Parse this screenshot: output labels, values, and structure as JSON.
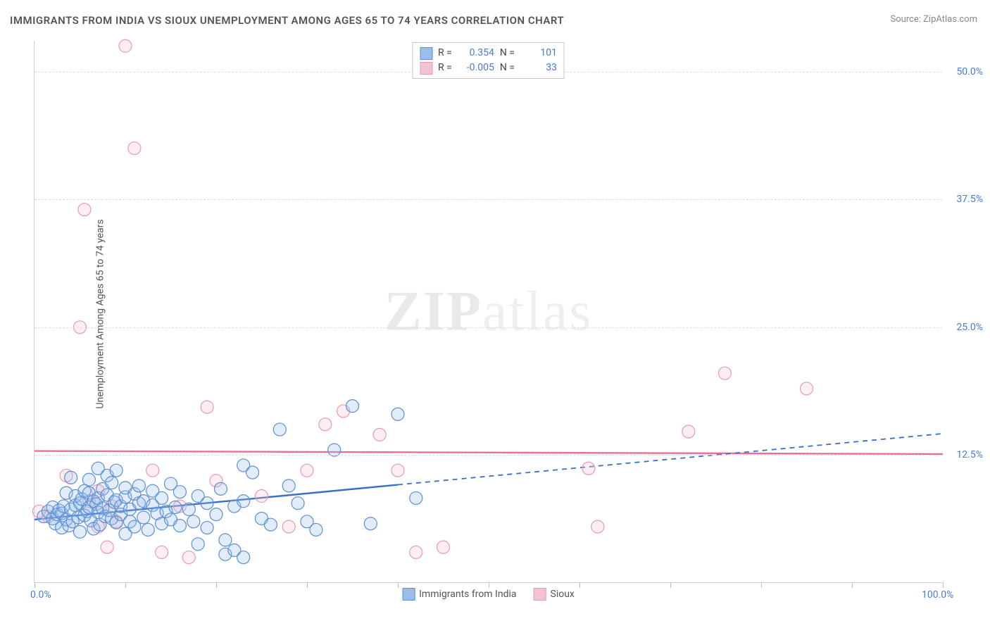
{
  "title": "IMMIGRANTS FROM INDIA VS SIOUX UNEMPLOYMENT AMONG AGES 65 TO 74 YEARS CORRELATION CHART",
  "source_label": "Source:",
  "source_name": "ZipAtlas.com",
  "y_axis_label": "Unemployment Among Ages 65 to 74 years",
  "watermark": {
    "bold": "ZIP",
    "light": "atlas"
  },
  "chart": {
    "type": "scatter",
    "xlim": [
      0,
      100
    ],
    "ylim": [
      0,
      53
    ],
    "x_ticks": [
      0,
      10,
      20,
      30,
      40,
      50,
      60,
      70,
      80,
      90,
      100
    ],
    "x_tick_labels": {
      "0": "0.0%",
      "100": "100.0%"
    },
    "y_gridlines": [
      12.5,
      25.0,
      37.5,
      50.0
    ],
    "y_tick_labels": [
      "12.5%",
      "25.0%",
      "37.5%",
      "50.0%"
    ],
    "background_color": "#ffffff",
    "grid_color": "#dcdcdc",
    "axis_color": "#d0d0d0",
    "label_color": "#4a7bd0",
    "marker_radius": 9,
    "marker_stroke_width": 1.2,
    "marker_fill_opacity": 0.28,
    "series": [
      {
        "name": "Immigrants from India",
        "color_stroke": "#5b8fd6",
        "color_fill": "#9cbde8",
        "R": "0.354",
        "N": "101",
        "trend": {
          "x1": 0,
          "y1": 6.2,
          "x2": 40,
          "y2": 9.6,
          "x_solid_end": 40,
          "x_dash_end": 100,
          "y_dash_end": 14.6,
          "stroke": "#3a6fc7",
          "width": 2.4
        },
        "points": [
          [
            1,
            6.5
          ],
          [
            1.5,
            7
          ],
          [
            2,
            6.3
          ],
          [
            2,
            7.4
          ],
          [
            2.3,
            5.8
          ],
          [
            2.5,
            6.7
          ],
          [
            2.7,
            7.1
          ],
          [
            3,
            6.8
          ],
          [
            3,
            5.4
          ],
          [
            3.2,
            7.5
          ],
          [
            3.5,
            6.2
          ],
          [
            3.5,
            8.8
          ],
          [
            3.8,
            5.6
          ],
          [
            4,
            7.2
          ],
          [
            4,
            10.3
          ],
          [
            4.2,
            6.0
          ],
          [
            4.5,
            7.6
          ],
          [
            4.5,
            8.5
          ],
          [
            4.8,
            6.4
          ],
          [
            5,
            7.8
          ],
          [
            5,
            5.0
          ],
          [
            5.2,
            8.2
          ],
          [
            5.5,
            6.6
          ],
          [
            5.5,
            9.0
          ],
          [
            5.8,
            7.0
          ],
          [
            6,
            7.4
          ],
          [
            6,
            8.8
          ],
          [
            6,
            10.1
          ],
          [
            6.2,
            6.1
          ],
          [
            6.5,
            8.0
          ],
          [
            6.5,
            5.3
          ],
          [
            6.8,
            7.7
          ],
          [
            7,
            6.9
          ],
          [
            7,
            8.3
          ],
          [
            7,
            11.2
          ],
          [
            7.2,
            5.7
          ],
          [
            7.5,
            7.3
          ],
          [
            7.5,
            9.2
          ],
          [
            7.8,
            6.5
          ],
          [
            8,
            8.6
          ],
          [
            8,
            10.5
          ],
          [
            8.2,
            7.1
          ],
          [
            8.5,
            6.3
          ],
          [
            8.5,
            9.8
          ],
          [
            8.8,
            7.9
          ],
          [
            9,
            5.9
          ],
          [
            9,
            8.1
          ],
          [
            9,
            11.0
          ],
          [
            9.5,
            6.7
          ],
          [
            9.5,
            7.5
          ],
          [
            10,
            8.4
          ],
          [
            10,
            4.8
          ],
          [
            10,
            9.3
          ],
          [
            10.5,
            7.2
          ],
          [
            10.5,
            6.0
          ],
          [
            11,
            8.7
          ],
          [
            11,
            5.5
          ],
          [
            11.5,
            7.8
          ],
          [
            11.5,
            9.5
          ],
          [
            12,
            6.4
          ],
          [
            12,
            8.0
          ],
          [
            12.5,
            5.2
          ],
          [
            13,
            7.6
          ],
          [
            13,
            9.0
          ],
          [
            13.5,
            6.8
          ],
          [
            14,
            8.3
          ],
          [
            14,
            5.8
          ],
          [
            14.5,
            7.0
          ],
          [
            15,
            9.7
          ],
          [
            15,
            6.2
          ],
          [
            15.5,
            7.4
          ],
          [
            16,
            8.9
          ],
          [
            16,
            5.6
          ],
          [
            17,
            7.2
          ],
          [
            17.5,
            6.0
          ],
          [
            18,
            8.5
          ],
          [
            18,
            3.8
          ],
          [
            19,
            7.8
          ],
          [
            19,
            5.4
          ],
          [
            20,
            6.7
          ],
          [
            20.5,
            9.2
          ],
          [
            21,
            4.2
          ],
          [
            21,
            2.8
          ],
          [
            22,
            7.5
          ],
          [
            22,
            3.2
          ],
          [
            23,
            11.5
          ],
          [
            23,
            8.0
          ],
          [
            23,
            2.5
          ],
          [
            24,
            10.8
          ],
          [
            25,
            6.3
          ],
          [
            26,
            5.7
          ],
          [
            27,
            15.0
          ],
          [
            28,
            9.5
          ],
          [
            29,
            7.8
          ],
          [
            30,
            6.0
          ],
          [
            31,
            5.2
          ],
          [
            33,
            13.0
          ],
          [
            35,
            17.3
          ],
          [
            37,
            5.8
          ],
          [
            40,
            16.5
          ],
          [
            42,
            8.3
          ]
        ]
      },
      {
        "name": "Sioux",
        "color_stroke": "#e89ab0",
        "color_fill": "#f4c3d0",
        "R": "-0.005",
        "N": "33",
        "trend": {
          "x1": 0,
          "y1": 12.9,
          "x2": 100,
          "y2": 12.6,
          "stroke": "#e86f9a",
          "width": 2.4
        },
        "points": [
          [
            1.5,
            6.5
          ],
          [
            3.5,
            10.5
          ],
          [
            5,
            25.0
          ],
          [
            5.5,
            36.5
          ],
          [
            6,
            8.0
          ],
          [
            7,
            5.5
          ],
          [
            7,
            9.0
          ],
          [
            8,
            3.5
          ],
          [
            8.5,
            7.5
          ],
          [
            9,
            6.0
          ],
          [
            10,
            52.5
          ],
          [
            11,
            42.5
          ],
          [
            13,
            11.0
          ],
          [
            14,
            3.0
          ],
          [
            16,
            7.5
          ],
          [
            17,
            2.5
          ],
          [
            19,
            17.2
          ],
          [
            20,
            10.0
          ],
          [
            25,
            8.5
          ],
          [
            28,
            5.5
          ],
          [
            30,
            11.0
          ],
          [
            32,
            15.5
          ],
          [
            34,
            16.8
          ],
          [
            38,
            14.5
          ],
          [
            40,
            11.0
          ],
          [
            42,
            3.0
          ],
          [
            45,
            3.5
          ],
          [
            61,
            11.2
          ],
          [
            62,
            5.5
          ],
          [
            72,
            14.8
          ],
          [
            76,
            20.5
          ],
          [
            85,
            19.0
          ],
          [
            0.5,
            7.0
          ]
        ]
      }
    ]
  },
  "legend_top": {
    "R_label": "R =",
    "N_label": "N ="
  },
  "legend_bottom": [
    {
      "label": "Immigrants from India",
      "fill": "#9cbde8",
      "stroke": "#5b8fd6"
    },
    {
      "label": "Sioux",
      "fill": "#f4c3d0",
      "stroke": "#e89ab0"
    }
  ]
}
